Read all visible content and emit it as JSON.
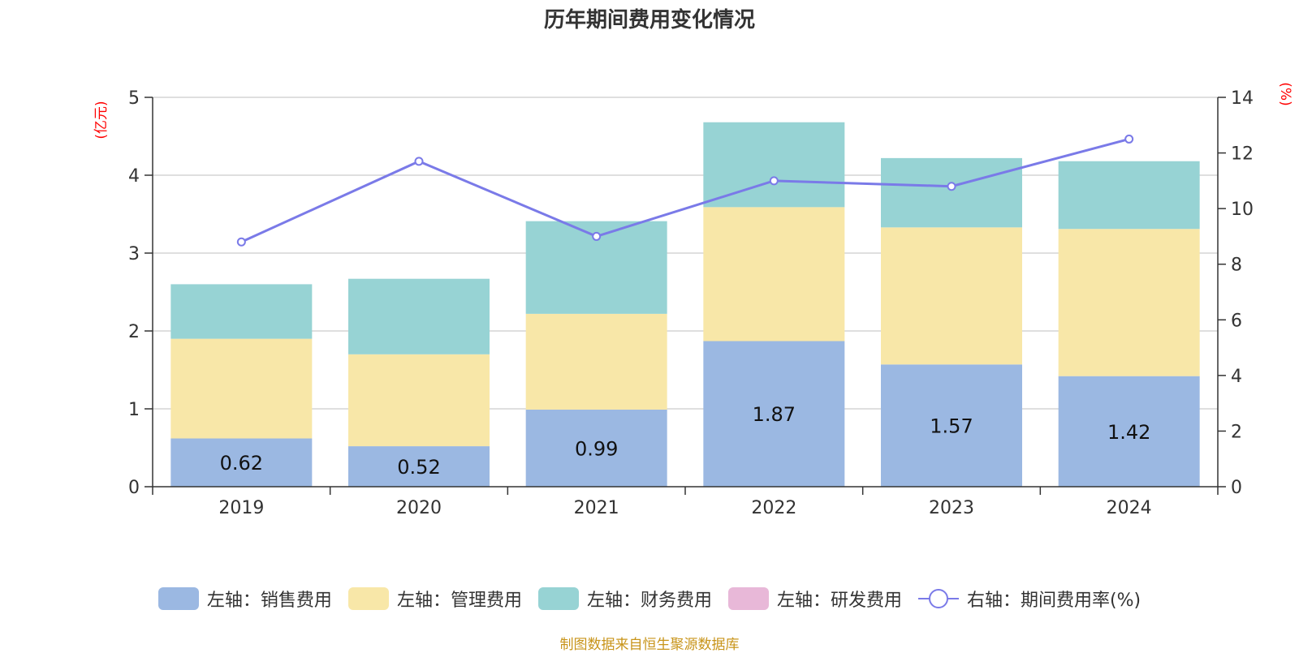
{
  "chart_data": {
    "type": "bar",
    "title": "历年期间费用变化情况",
    "categories": [
      "2019",
      "2020",
      "2021",
      "2022",
      "2023",
      "2024"
    ],
    "y_left": {
      "label": "(亿元)",
      "min": 0,
      "max": 5,
      "ticks": [
        0,
        1,
        2,
        3,
        4,
        5
      ]
    },
    "y_right": {
      "label": "(%)",
      "min": 0,
      "max": 14,
      "ticks": [
        0,
        2,
        4,
        6,
        8,
        10,
        12,
        14
      ]
    },
    "series": [
      {
        "name": "左轴：销售费用",
        "type": "bar",
        "axis": "left",
        "color": "#9bb8e2",
        "values": [
          0.62,
          0.52,
          0.99,
          1.87,
          1.57,
          1.42
        ],
        "show_labels": true
      },
      {
        "name": "左轴：管理费用",
        "type": "bar",
        "axis": "left",
        "color": "#f8e7a8",
        "values": [
          1.28,
          1.18,
          1.23,
          1.72,
          1.76,
          1.89
        ]
      },
      {
        "name": "左轴：财务费用",
        "type": "bar",
        "axis": "left",
        "color": "#97d3d4",
        "values": [
          0.7,
          0.97,
          1.19,
          1.09,
          0.89,
          0.87
        ]
      },
      {
        "name": "左轴：研发费用",
        "type": "bar",
        "axis": "left",
        "color": "#e8b8d8",
        "values": [
          0,
          0,
          0,
          0,
          0,
          0
        ]
      },
      {
        "name": "右轴：期间费用率(%)",
        "type": "line",
        "axis": "right",
        "color": "#7a7ae8",
        "values": [
          8.8,
          11.7,
          9.0,
          11.0,
          10.8,
          12.5
        ]
      }
    ],
    "grid": true,
    "legend_position": "bottom"
  },
  "source_note": "制图数据来自恒生聚源数据库"
}
